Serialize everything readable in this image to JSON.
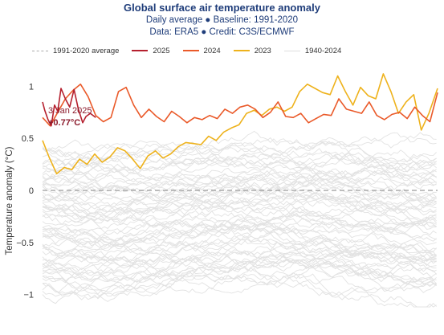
{
  "title": "Global surface air temperature anomaly",
  "subtitle_line1": "Daily average ● Baseline: 1991-2020",
  "subtitle_line2": "Data: ERA5 ● Credit: C3S/ECMWF",
  "legend": [
    {
      "label": "1991-2020 average",
      "color": "#aaaaaa",
      "style": "dashed"
    },
    {
      "label": "2025",
      "color": "#b5202e",
      "style": "solid"
    },
    {
      "label": "2024",
      "color": "#ea5a2a",
      "style": "solid"
    },
    {
      "label": "2023",
      "color": "#eeb21c",
      "style": "solid"
    },
    {
      "label": "1940-2024",
      "color": "#dddddd",
      "style": "solid"
    }
  ],
  "annotation": {
    "date": "3 Jan 2025",
    "value": "+0.77°C"
  },
  "chart_data": {
    "type": "line",
    "ylabel": "Temperature anomaly (°C)",
    "ylim": [
      -1.15,
      1.15
    ],
    "y_ticks": [
      1,
      0.5,
      0,
      -0.5,
      -1
    ],
    "y_tick_labels": [
      "1",
      "0.5",
      "0",
      "−0.5",
      "−1"
    ],
    "x_unit": "day of year",
    "xlim": [
      1,
      365
    ],
    "baseline": {
      "name": "1991-2020 average",
      "value": 0
    },
    "grid": false,
    "legend_position": "top",
    "series": [
      {
        "name": "2025",
        "color": "#b5202e",
        "x": [
          1,
          3,
          6,
          9,
          12,
          15,
          18,
          22,
          26,
          30,
          34,
          38,
          41,
          45,
          50
        ],
        "y": [
          0.85,
          0.77,
          0.68,
          0.62,
          0.82,
          0.76,
          0.98,
          0.88,
          0.8,
          0.97,
          0.78,
          0.65,
          0.71,
          0.74,
          0.7
        ]
      },
      {
        "name": "2024",
        "color": "#ea5a2a",
        "x": [
          1,
          8,
          15,
          22,
          29,
          36,
          43,
          50,
          57,
          64,
          71,
          78,
          85,
          92,
          99,
          106,
          113,
          120,
          127,
          134,
          141,
          148,
          155,
          162,
          169,
          176,
          183,
          190,
          197,
          204,
          211,
          218,
          225,
          232,
          239,
          246,
          253,
          260,
          267,
          274,
          281,
          288,
          295,
          302,
          309,
          316,
          323,
          330,
          337,
          344,
          351,
          358,
          365
        ],
        "y": [
          0.7,
          0.62,
          0.75,
          0.88,
          0.96,
          1.02,
          0.9,
          0.72,
          0.66,
          0.7,
          0.95,
          0.99,
          0.82,
          0.7,
          0.78,
          0.71,
          0.66,
          0.76,
          0.71,
          0.65,
          0.7,
          0.68,
          0.72,
          0.69,
          0.78,
          0.74,
          0.8,
          0.82,
          0.78,
          0.7,
          0.75,
          0.85,
          0.71,
          0.7,
          0.74,
          0.65,
          0.69,
          0.73,
          0.72,
          0.88,
          0.78,
          0.76,
          0.74,
          0.85,
          0.72,
          0.68,
          0.73,
          0.75,
          0.69,
          0.8,
          0.72,
          0.66,
          0.94
        ]
      },
      {
        "name": "2023",
        "color": "#eeb21c",
        "x": [
          1,
          7,
          14,
          21,
          28,
          35,
          42,
          49,
          56,
          63,
          70,
          77,
          84,
          91,
          98,
          105,
          112,
          119,
          126,
          133,
          140,
          147,
          154,
          161,
          168,
          175,
          182,
          189,
          196,
          203,
          210,
          217,
          224,
          231,
          238,
          245,
          252,
          259,
          266,
          273,
          280,
          287,
          294,
          301,
          308,
          315,
          322,
          329,
          336,
          343,
          350,
          357,
          365
        ],
        "y": [
          0.48,
          0.32,
          0.16,
          0.22,
          0.2,
          0.3,
          0.25,
          0.35,
          0.27,
          0.32,
          0.41,
          0.38,
          0.3,
          0.21,
          0.33,
          0.38,
          0.31,
          0.35,
          0.42,
          0.46,
          0.45,
          0.44,
          0.52,
          0.48,
          0.56,
          0.6,
          0.63,
          0.74,
          0.77,
          0.72,
          0.78,
          0.8,
          0.76,
          0.8,
          0.95,
          1.02,
          0.98,
          0.94,
          0.92,
          1.1,
          0.95,
          0.82,
          0.99,
          0.91,
          0.88,
          1.12,
          0.95,
          0.74,
          0.85,
          0.92,
          0.58,
          0.74,
          0.98
        ]
      }
    ]
  }
}
